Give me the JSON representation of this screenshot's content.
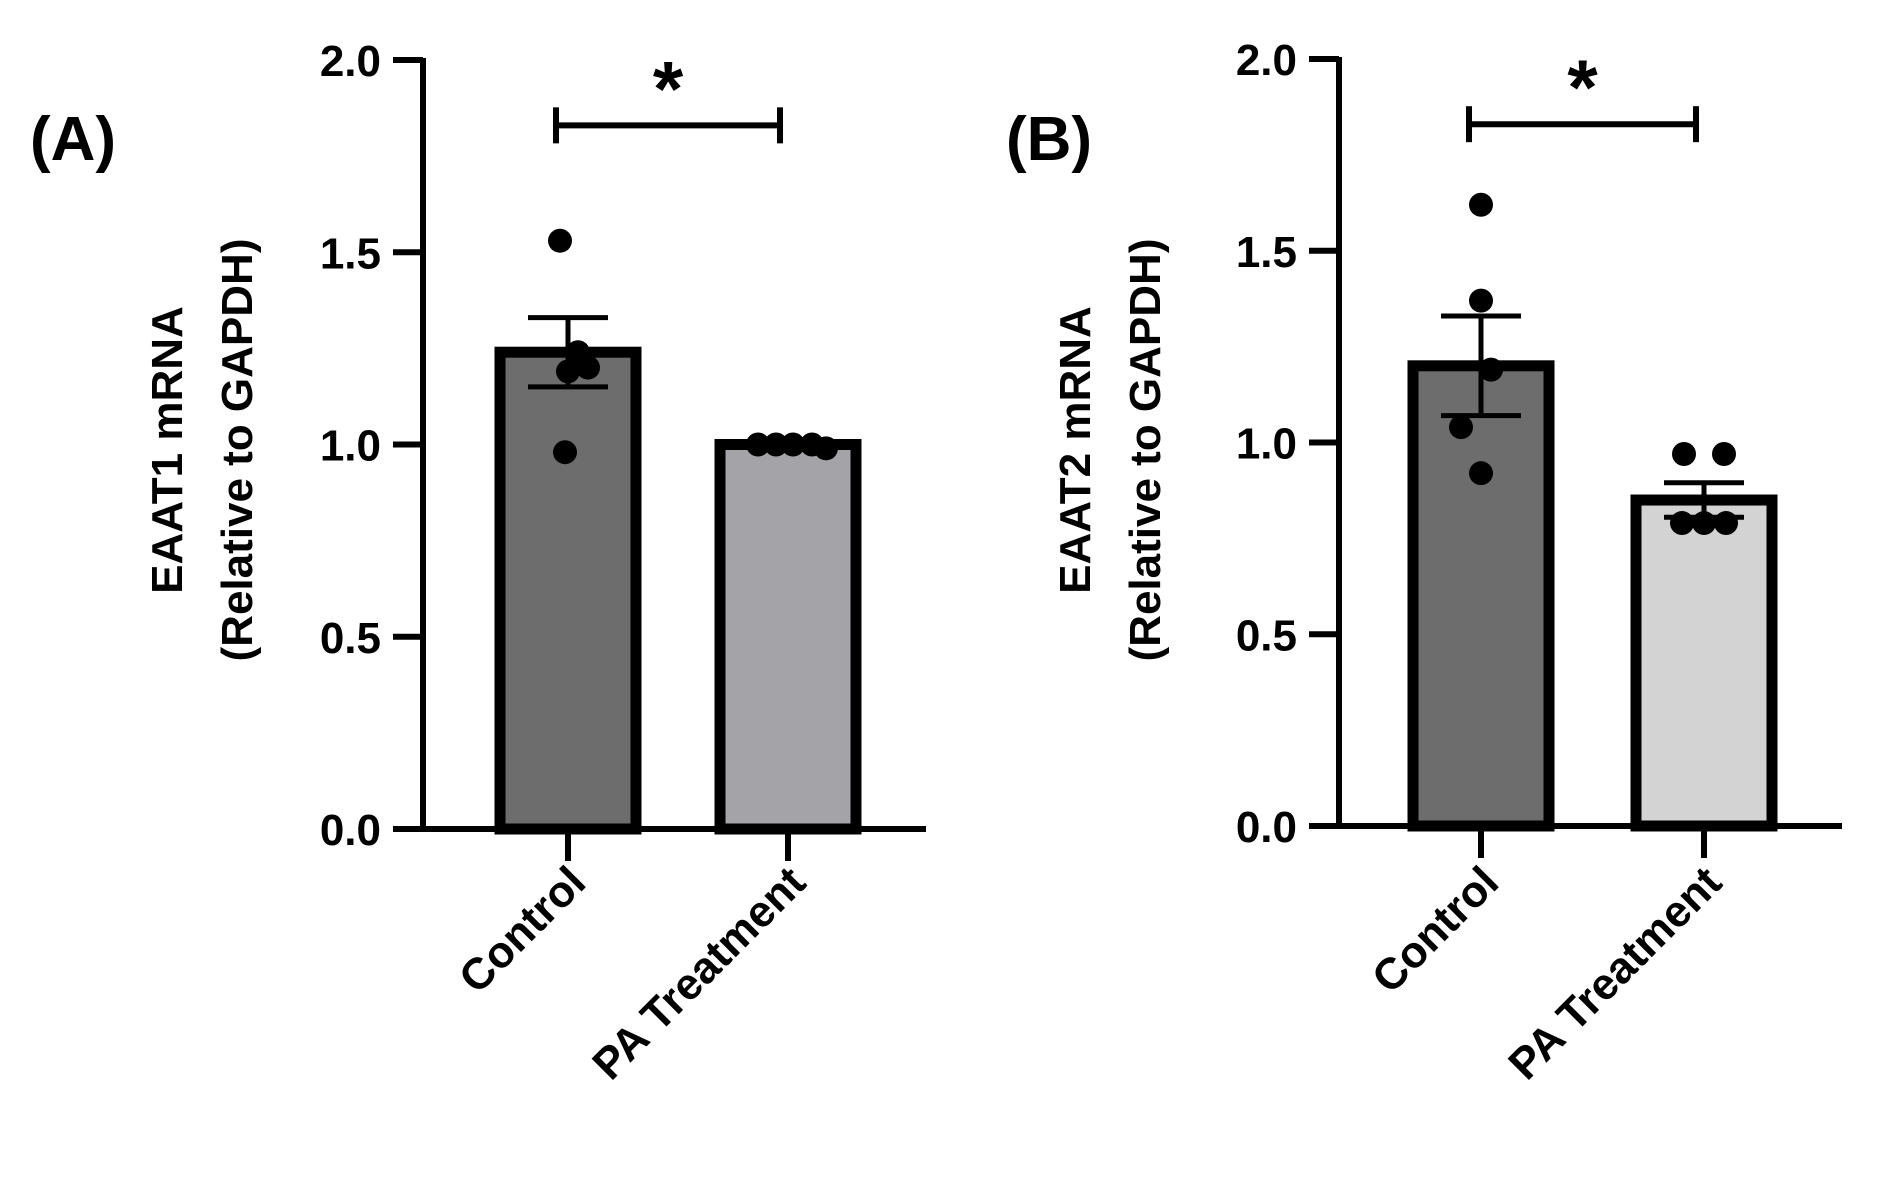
{
  "colors": {
    "control_bar": "#6d6d6d",
    "pa_bar_A": "#a4a3a8",
    "pa_bar_B": "#d3d3d3",
    "stroke": "#000000"
  },
  "chart_data": [
    {
      "type": "bar",
      "panel_label": "(A)",
      "ylabel_line1": "EAAT1 mRNA",
      "ylabel_line2": "(Relative to GAPDH)",
      "categories": [
        "Control",
        "PA Treatment"
      ],
      "values": [
        1.24,
        1.0
      ],
      "sem": [
        0.09,
        0.0
      ],
      "points": [
        [
          1.53,
          1.24,
          1.2,
          1.19,
          0.98
        ],
        [
          1.0,
          1.0,
          1.0,
          1.0,
          0.99
        ]
      ],
      "ylim": [
        0,
        2.0
      ],
      "yticks": [
        0.0,
        0.5,
        1.0,
        1.5,
        2.0
      ],
      "ytick_labels": [
        "0.0",
        "0.5",
        "1.0",
        "1.5",
        "2.0"
      ],
      "significance": {
        "label": "*",
        "between": [
          0,
          1
        ],
        "y": 1.83
      },
      "legend": "none",
      "grid": false
    },
    {
      "type": "bar",
      "panel_label": "(B)",
      "ylabel_line1": "EAAT2 mRNA",
      "ylabel_line2": "(Relative to GAPDH)",
      "categories": [
        "Control",
        "PA Treatment"
      ],
      "values": [
        1.2,
        0.85
      ],
      "sem": [
        0.13,
        0.045
      ],
      "points": [
        [
          1.62,
          1.37,
          1.19,
          1.04,
          0.92
        ],
        [
          0.97,
          0.97,
          0.79,
          0.79,
          0.79
        ]
      ],
      "ylim": [
        0,
        2.0
      ],
      "yticks": [
        0.0,
        0.5,
        1.0,
        1.5,
        2.0
      ],
      "ytick_labels": [
        "0.0",
        "0.5",
        "1.0",
        "1.5",
        "2.0"
      ],
      "significance": {
        "label": "*",
        "between": [
          0,
          1
        ],
        "y": 1.83
      },
      "legend": "none",
      "grid": false
    }
  ]
}
